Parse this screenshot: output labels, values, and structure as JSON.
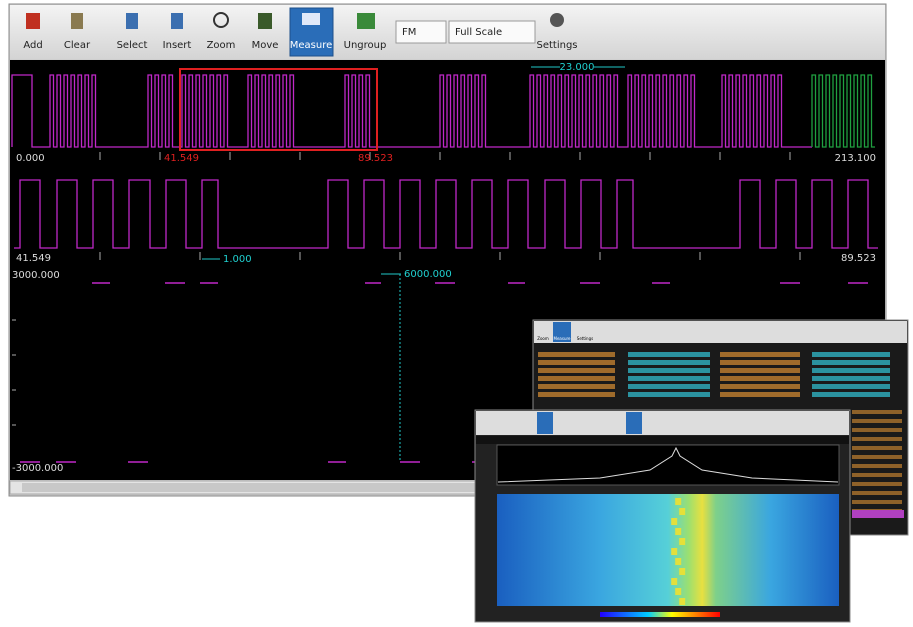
{
  "toolbar": {
    "buttons": [
      "Add",
      "Clear",
      "Select",
      "Insert",
      "Zoom",
      "Move",
      "Measure",
      "Ungroup"
    ],
    "mode": "FM",
    "scale": "Full Scale",
    "settings": "Settings"
  },
  "waveform": {
    "track1": {
      "start": "0.000",
      "selection_start": "41.549",
      "selection_end": "89.523",
      "end": "213.100",
      "measure": "23.000"
    },
    "track2": {
      "start": "41.549",
      "end": "89.523",
      "measure": "1.000"
    },
    "analog": {
      "max": "3000.000",
      "min": "-3000.000",
      "measure": "6000.000"
    }
  },
  "insets": {
    "back_toolbar": [
      "Zoom",
      "Measure",
      "Settings"
    ]
  }
}
